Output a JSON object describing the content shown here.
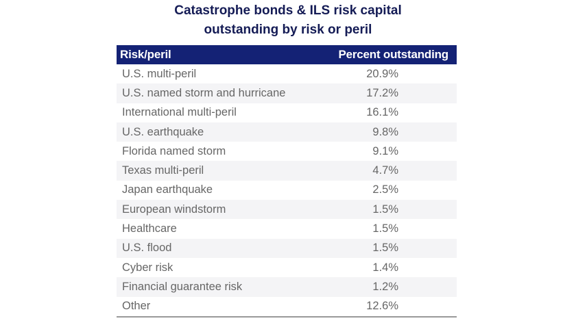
{
  "chart_data": {
    "type": "table",
    "title": "Catastrophe bonds & ILS risk capital outstanding by risk or peril",
    "title_lines": [
      "Catastrophe bonds & ILS risk capital",
      "outstanding by risk or peril"
    ],
    "columns": [
      "Risk/peril",
      "Percent outstanding"
    ],
    "rows": [
      {
        "risk": "U.S. multi-peril",
        "percent": "20.9%"
      },
      {
        "risk": "U.S. named storm and hurricane",
        "percent": "17.2%"
      },
      {
        "risk": "International multi-peril",
        "percent": "16.1%"
      },
      {
        "risk": "U.S. earthquake",
        "percent": "9.8%"
      },
      {
        "risk": "Florida named storm",
        "percent": "9.1%"
      },
      {
        "risk": "Texas multi-peril",
        "percent": "4.7%"
      },
      {
        "risk": "Japan earthquake",
        "percent": "2.5%"
      },
      {
        "risk": "European windstorm",
        "percent": "1.5%"
      },
      {
        "risk": "Healthcare",
        "percent": "1.5%"
      },
      {
        "risk": "U.S. flood",
        "percent": "1.5%"
      },
      {
        "risk": "Cyber risk",
        "percent": "1.4%"
      },
      {
        "risk": "Financial guarantee risk",
        "percent": "1.2%"
      },
      {
        "risk": "Other",
        "percent": "12.6%"
      }
    ],
    "colors": {
      "header_bg": "#142275",
      "title": "#141b55",
      "alt_row": "#f4f4f6",
      "text": "#666666"
    }
  }
}
